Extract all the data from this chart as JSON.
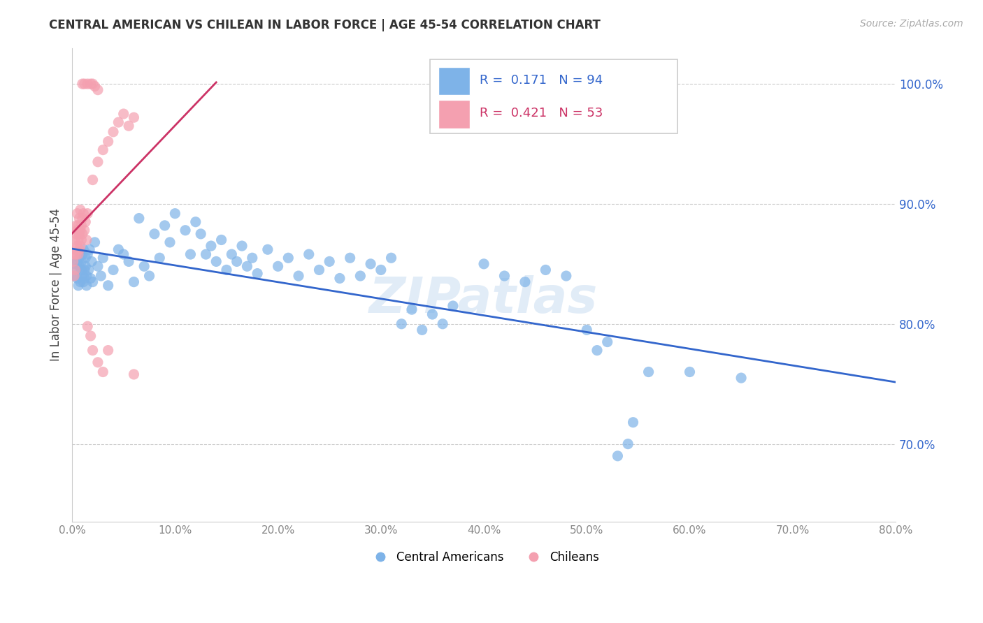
{
  "title": "CENTRAL AMERICAN VS CHILEAN IN LABOR FORCE | AGE 45-54 CORRELATION CHART",
  "source": "Source: ZipAtlas.com",
  "xlabel": "",
  "ylabel": "In Labor Force | Age 45-54",
  "xlim": [
    0.0,
    0.8
  ],
  "ylim": [
    0.635,
    1.03
  ],
  "xticks": [
    0.0,
    0.1,
    0.2,
    0.3,
    0.4,
    0.5,
    0.6,
    0.7,
    0.8
  ],
  "yticks": [
    0.7,
    0.8,
    0.9,
    1.0
  ],
  "blue_R": 0.171,
  "blue_N": 94,
  "pink_R": 0.421,
  "pink_N": 53,
  "blue_color": "#7EB3E8",
  "pink_color": "#F4A0B0",
  "blue_line_color": "#3366CC",
  "pink_line_color": "#CC3366",
  "watermark": "ZIPatlas",
  "legend_blue_label": "Central Americans",
  "legend_pink_label": "Chileans",
  "blue_scatter": [
    [
      0.002,
      0.85
    ],
    [
      0.003,
      0.84
    ],
    [
      0.004,
      0.845
    ],
    [
      0.005,
      0.852
    ],
    [
      0.005,
      0.838
    ],
    [
      0.006,
      0.832
    ],
    [
      0.007,
      0.855
    ],
    [
      0.007,
      0.848
    ],
    [
      0.008,
      0.835
    ],
    [
      0.008,
      0.86
    ],
    [
      0.009,
      0.845
    ],
    [
      0.009,
      0.852
    ],
    [
      0.01,
      0.84
    ],
    [
      0.01,
      0.858
    ],
    [
      0.011,
      0.835
    ],
    [
      0.011,
      0.862
    ],
    [
      0.012,
      0.845
    ],
    [
      0.012,
      0.838
    ],
    [
      0.013,
      0.855
    ],
    [
      0.013,
      0.848
    ],
    [
      0.014,
      0.84
    ],
    [
      0.014,
      0.832
    ],
    [
      0.015,
      0.858
    ],
    [
      0.016,
      0.845
    ],
    [
      0.017,
      0.862
    ],
    [
      0.018,
      0.838
    ],
    [
      0.019,
      0.852
    ],
    [
      0.02,
      0.835
    ],
    [
      0.022,
      0.868
    ],
    [
      0.025,
      0.848
    ],
    [
      0.028,
      0.84
    ],
    [
      0.03,
      0.855
    ],
    [
      0.035,
      0.832
    ],
    [
      0.04,
      0.845
    ],
    [
      0.045,
      0.862
    ],
    [
      0.05,
      0.858
    ],
    [
      0.055,
      0.852
    ],
    [
      0.06,
      0.835
    ],
    [
      0.065,
      0.888
    ],
    [
      0.07,
      0.848
    ],
    [
      0.075,
      0.84
    ],
    [
      0.08,
      0.875
    ],
    [
      0.085,
      0.855
    ],
    [
      0.09,
      0.882
    ],
    [
      0.095,
      0.868
    ],
    [
      0.1,
      0.892
    ],
    [
      0.11,
      0.878
    ],
    [
      0.115,
      0.858
    ],
    [
      0.12,
      0.885
    ],
    [
      0.125,
      0.875
    ],
    [
      0.13,
      0.858
    ],
    [
      0.135,
      0.865
    ],
    [
      0.14,
      0.852
    ],
    [
      0.145,
      0.87
    ],
    [
      0.15,
      0.845
    ],
    [
      0.155,
      0.858
    ],
    [
      0.16,
      0.852
    ],
    [
      0.165,
      0.865
    ],
    [
      0.17,
      0.848
    ],
    [
      0.175,
      0.855
    ],
    [
      0.18,
      0.842
    ],
    [
      0.19,
      0.862
    ],
    [
      0.2,
      0.848
    ],
    [
      0.21,
      0.855
    ],
    [
      0.22,
      0.84
    ],
    [
      0.23,
      0.858
    ],
    [
      0.24,
      0.845
    ],
    [
      0.25,
      0.852
    ],
    [
      0.26,
      0.838
    ],
    [
      0.27,
      0.855
    ],
    [
      0.28,
      0.84
    ],
    [
      0.29,
      0.85
    ],
    [
      0.3,
      0.845
    ],
    [
      0.31,
      0.855
    ],
    [
      0.32,
      0.8
    ],
    [
      0.33,
      0.812
    ],
    [
      0.34,
      0.795
    ],
    [
      0.35,
      0.808
    ],
    [
      0.36,
      0.8
    ],
    [
      0.37,
      0.815
    ],
    [
      0.4,
      0.85
    ],
    [
      0.42,
      0.84
    ],
    [
      0.44,
      0.835
    ],
    [
      0.46,
      0.845
    ],
    [
      0.48,
      0.84
    ],
    [
      0.5,
      0.795
    ],
    [
      0.51,
      0.778
    ],
    [
      0.52,
      0.785
    ],
    [
      0.53,
      0.69
    ],
    [
      0.54,
      0.7
    ],
    [
      0.545,
      0.718
    ],
    [
      0.56,
      0.76
    ],
    [
      0.6,
      0.76
    ],
    [
      0.65,
      0.755
    ]
  ],
  "pink_scatter": [
    [
      0.001,
      0.852
    ],
    [
      0.002,
      0.84
    ],
    [
      0.002,
      0.858
    ],
    [
      0.003,
      0.845
    ],
    [
      0.003,
      0.862
    ],
    [
      0.003,
      0.87
    ],
    [
      0.004,
      0.858
    ],
    [
      0.004,
      0.875
    ],
    [
      0.004,
      0.882
    ],
    [
      0.005,
      0.865
    ],
    [
      0.005,
      0.878
    ],
    [
      0.005,
      0.892
    ],
    [
      0.006,
      0.87
    ],
    [
      0.006,
      0.858
    ],
    [
      0.006,
      0.882
    ],
    [
      0.007,
      0.875
    ],
    [
      0.007,
      0.862
    ],
    [
      0.007,
      0.888
    ],
    [
      0.008,
      0.878
    ],
    [
      0.008,
      0.865
    ],
    [
      0.008,
      0.895
    ],
    [
      0.009,
      0.882
    ],
    [
      0.009,
      0.87
    ],
    [
      0.01,
      0.888
    ],
    [
      0.01,
      0.875
    ],
    [
      0.011,
      0.892
    ],
    [
      0.012,
      0.878
    ],
    [
      0.013,
      0.885
    ],
    [
      0.014,
      0.87
    ],
    [
      0.015,
      0.892
    ],
    [
      0.02,
      0.92
    ],
    [
      0.025,
      0.935
    ],
    [
      0.03,
      0.945
    ],
    [
      0.035,
      0.952
    ],
    [
      0.04,
      0.96
    ],
    [
      0.045,
      0.968
    ],
    [
      0.05,
      0.975
    ],
    [
      0.055,
      0.965
    ],
    [
      0.06,
      0.972
    ],
    [
      0.01,
      1.0
    ],
    [
      0.012,
      1.0
    ],
    [
      0.015,
      1.0
    ],
    [
      0.018,
      1.0
    ],
    [
      0.02,
      1.0
    ],
    [
      0.022,
      0.998
    ],
    [
      0.025,
      0.995
    ],
    [
      0.015,
      0.798
    ],
    [
      0.018,
      0.79
    ],
    [
      0.02,
      0.778
    ],
    [
      0.025,
      0.768
    ],
    [
      0.03,
      0.76
    ],
    [
      0.035,
      0.778
    ],
    [
      0.06,
      0.758
    ]
  ]
}
